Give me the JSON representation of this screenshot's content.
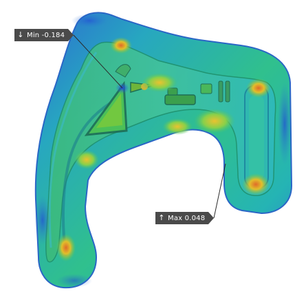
{
  "callouts": {
    "min": {
      "arrow_icon": "down-arrow-icon",
      "glyph": "↓",
      "label": "Min -0.184"
    },
    "max": {
      "arrow_icon": "up-arrow-icon",
      "glyph": "↑",
      "label": "Max 0.048"
    }
  },
  "colors": {
    "background": "#ffffff",
    "callout_bg": "#4a4a4a",
    "callout_text": "#ffffff",
    "deviation_low": "#2f5fd8",
    "deviation_mid": "#26b7b0",
    "deviation_green": "#66c43a",
    "deviation_high": "#e0b22a",
    "deviation_peak": "#d9572b"
  }
}
